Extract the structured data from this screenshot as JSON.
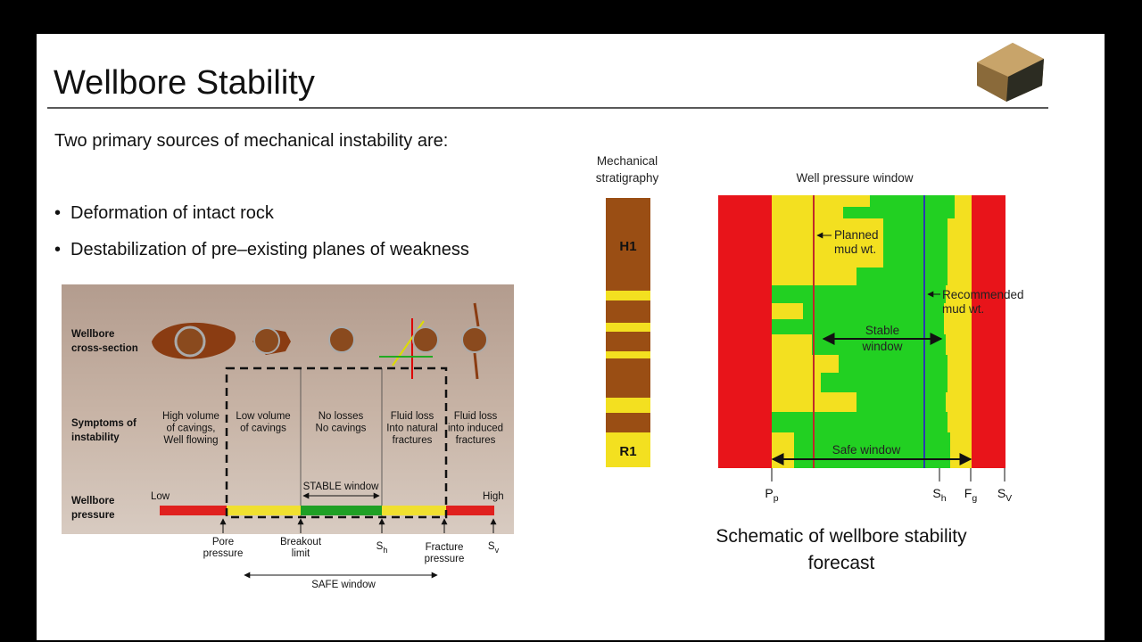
{
  "header": {
    "title": "Wellbore Stability"
  },
  "intro": "Two primary sources of mechanical instability are:",
  "bullets": [
    "Deformation of intact rock",
    "Destabilization of pre–existing planes of weakness"
  ],
  "left_figure": {
    "row_labels": [
      [
        "Wellbore",
        "cross-section"
      ],
      [
        "Symptoms of",
        "instability"
      ],
      [
        "Wellbore",
        "pressure"
      ]
    ],
    "symptoms": [
      [
        "High volume",
        "of cavings,",
        "Well flowing"
      ],
      [
        "Low volume",
        "of  cavings"
      ],
      [
        "No losses",
        "No cavings"
      ],
      [
        "Fluid loss",
        "Into natural",
        "fractures"
      ],
      [
        "Fluid loss",
        "into induced",
        "fractures"
      ]
    ],
    "low": "Low",
    "high": "High",
    "stable_window": "STABLE window",
    "markers": [
      [
        "Pore",
        "pressure"
      ],
      [
        "Breakout",
        "limit"
      ],
      {
        "main": "S",
        "sub": "h"
      },
      [
        "Fracture",
        "pressure"
      ],
      {
        "main": "S",
        "sub": "v"
      }
    ],
    "safe_window": "SAFE window"
  },
  "right_figure": {
    "strat_title": [
      "Mechanical",
      "stratigraphy"
    ],
    "strat_labels": [
      "H1",
      "R1"
    ],
    "window_title": "Well pressure window",
    "planned": [
      "Planned",
      "mud wt."
    ],
    "recommended": [
      "Recommended",
      "mud wt."
    ],
    "stable": [
      "Stable",
      "window"
    ],
    "safe": "Safe window",
    "axis_labels": [
      {
        "main": "P",
        "sub": "p"
      },
      {
        "main": "S",
        "sub": "h"
      },
      {
        "main": "F",
        "sub": "g"
      },
      {
        "main": "S",
        "sub": "V"
      }
    ]
  },
  "caption": [
    "Schematic of wellbore stability",
    "forecast"
  ]
}
